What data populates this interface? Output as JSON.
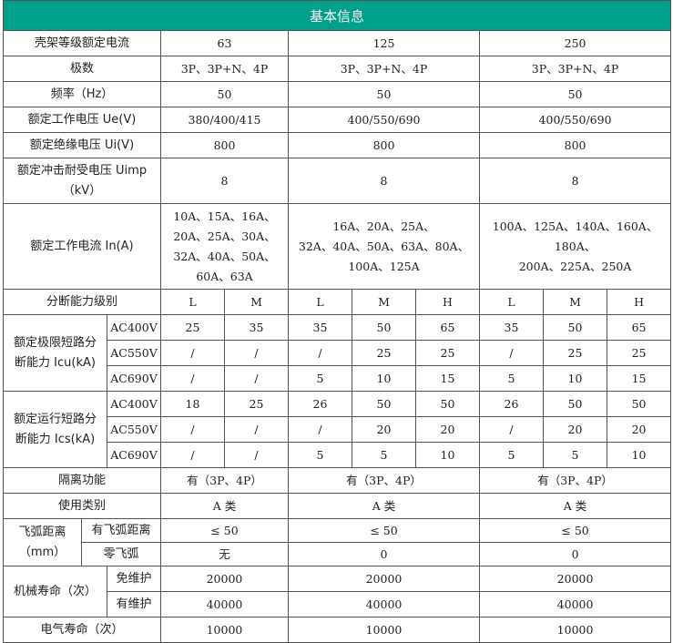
{
  "header": {
    "title": "基本信息",
    "color": "#00a08a"
  },
  "frame": {
    "label": "壳架等级额定电流",
    "v": [
      "63",
      "125",
      "250"
    ]
  },
  "poles": {
    "label": "极数",
    "v": [
      "3P、3P+N、4P",
      "3P、3P+N、4P",
      "3P、3P+N、4P"
    ]
  },
  "freq": {
    "label": "频率（Hz）",
    "v": [
      "50",
      "50",
      "50"
    ]
  },
  "ue": {
    "label": "额定工作电压 Ue(V)",
    "v": [
      "380/400/415",
      "400/550/690",
      "400/550/690"
    ]
  },
  "ui": {
    "label": "额定绝缘电压 Ui(V)",
    "v": [
      "800",
      "800",
      "800"
    ]
  },
  "uimp": {
    "label": "额定冲击耐受电压 Uimp\n（kV）",
    "v": [
      "8",
      "8",
      "8"
    ]
  },
  "inA": {
    "label": "额定工作电流 In(A)",
    "v": [
      "10A、15A、16A、\n20A、25A、30A、\n32A、40A、50A、\n60A、63A",
      "16A、20A、25A、\n32A、40A、50A、63A、80A、\n100A、125A",
      "100A、125A、140A、160A、180A、\n200A、225A、250A"
    ]
  },
  "breaking": {
    "label": "分断能力级别",
    "levels": [
      "L",
      "M",
      "L",
      "M",
      "H",
      "L",
      "M",
      "H"
    ]
  },
  "icu": {
    "label": "额定极限短路分\n断能力 Icu(kA)",
    "voltages": [
      "AC400V",
      "AC550V",
      "AC690V"
    ],
    "rows": [
      [
        "25",
        "35",
        "35",
        "50",
        "65",
        "35",
        "50",
        "65"
      ],
      [
        "/",
        "/",
        "/",
        "25",
        "25",
        "/",
        "25",
        "25"
      ],
      [
        "/",
        "/",
        "5",
        "10",
        "15",
        "5",
        "10",
        "15"
      ]
    ]
  },
  "ics": {
    "label": "额定运行短路分\n断能力 Ics(kA)",
    "voltages": [
      "AC400V",
      "AC550V",
      "AC690V"
    ],
    "rows": [
      [
        "18",
        "25",
        "26",
        "50",
        "50",
        "26",
        "50",
        "50"
      ],
      [
        "/",
        "/",
        "/",
        "20",
        "20",
        "/",
        "20",
        "20"
      ],
      [
        "/",
        "/",
        "5",
        "5",
        "10",
        "5",
        "5",
        "10"
      ]
    ]
  },
  "isolation": {
    "label": "隔离功能",
    "v": [
      "有（3P、4P）",
      "有（3P、4P）",
      "有（3P、4P）"
    ]
  },
  "category": {
    "label": "使用类别",
    "v": [
      "A 类",
      "A 类",
      "A 类"
    ]
  },
  "arc": {
    "label": "飞弧距离\n（mm）",
    "with_label": "有飞弧距离",
    "with": [
      "≤ 50",
      "≤ 50",
      "≤ 50"
    ],
    "zero_label": "零飞弧",
    "zero": [
      "无",
      "0",
      "0"
    ]
  },
  "mech": {
    "label": "机械寿命（次）",
    "free_label": "免维护",
    "free": [
      "20000",
      "20000",
      "20000"
    ],
    "maint_label": "有维护",
    "maint": [
      "40000",
      "40000",
      "40000"
    ]
  },
  "elec": {
    "label": "电气寿命（次）",
    "v": [
      "10000",
      "10000",
      "10000"
    ]
  }
}
